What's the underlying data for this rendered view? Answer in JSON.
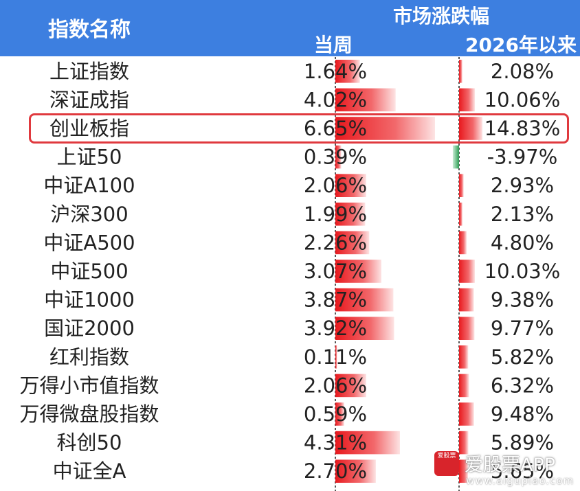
{
  "chart_data": {
    "type": "table",
    "header": {
      "name": "指数名称",
      "group": "市场涨跌幅",
      "week": "当周",
      "ytd": "2026年以来"
    },
    "highlighted": "创业板指",
    "rows": [
      {
        "name": "上证指数",
        "week": 1.64,
        "week_label": "1.64%",
        "ytd": 2.08,
        "ytd_label": "2.08%"
      },
      {
        "name": "深证成指",
        "week": 4.02,
        "week_label": "4.02%",
        "ytd": 10.06,
        "ytd_label": "10.06%"
      },
      {
        "name": "创业板指",
        "week": 6.65,
        "week_label": "6.65%",
        "ytd": 14.83,
        "ytd_label": "14.83%"
      },
      {
        "name": "上证50",
        "week": 0.39,
        "week_label": "0.39%",
        "ytd": -3.97,
        "ytd_label": "-3.97%"
      },
      {
        "name": "中证A100",
        "week": 2.06,
        "week_label": "2.06%",
        "ytd": 2.93,
        "ytd_label": "2.93%"
      },
      {
        "name": "沪深300",
        "week": 1.99,
        "week_label": "1.99%",
        "ytd": 2.13,
        "ytd_label": "2.13%"
      },
      {
        "name": "中证A500",
        "week": 2.26,
        "week_label": "2.26%",
        "ytd": 4.8,
        "ytd_label": "4.80%"
      },
      {
        "name": "中证500",
        "week": 3.07,
        "week_label": "3.07%",
        "ytd": 10.03,
        "ytd_label": "10.03%"
      },
      {
        "name": "中证1000",
        "week": 3.87,
        "week_label": "3.87%",
        "ytd": 9.38,
        "ytd_label": "9.38%"
      },
      {
        "name": "国证2000",
        "week": 3.92,
        "week_label": "3.92%",
        "ytd": 9.77,
        "ytd_label": "9.77%"
      },
      {
        "name": "红利指数",
        "week": 0.11,
        "week_label": "0.11%",
        "ytd": 5.82,
        "ytd_label": "5.82%"
      },
      {
        "name": "万得小市值指数",
        "week": 2.06,
        "week_label": "2.06%",
        "ytd": 6.32,
        "ytd_label": "6.32%"
      },
      {
        "name": "万得微盘股指数",
        "week": 0.59,
        "week_label": "0.59%",
        "ytd": 9.48,
        "ytd_label": "9.48%"
      },
      {
        "name": "科创50",
        "week": 4.31,
        "week_label": "4.31%",
        "ytd": 5.89,
        "ytd_label": "5.89%"
      },
      {
        "name": "中证全A",
        "week": 2.7,
        "week_label": "2.70%",
        "ytd": 5.65,
        "ytd_label": "5.65%"
      }
    ],
    "colors": {
      "positive": "#e8191e",
      "negative": "#3aa860",
      "header": "#3d7fe0",
      "highlight": "#e0393e"
    }
  },
  "watermark": {
    "logo_text": "爱股票",
    "brand": "爱股票APP",
    "url": "www.aigupiao.com"
  }
}
